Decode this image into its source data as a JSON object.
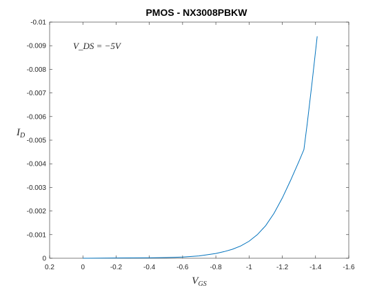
{
  "chart_data": {
    "type": "line",
    "title": "PMOS - NX3008PBKW",
    "xlabel": "V_GS",
    "ylabel": "I_D",
    "annotation": "V_DS = −5V",
    "xlim": [
      0.2,
      -1.6
    ],
    "ylim": [
      0,
      -0.01
    ],
    "x_reversed": true,
    "y_reversed": true,
    "grid": false,
    "x_ticks": [
      0.2,
      0,
      -0.2,
      -0.4,
      -0.6,
      -0.8,
      -1,
      -1.2,
      -1.4,
      -1.6
    ],
    "x_tick_labels": [
      "0.2",
      "0",
      "-0.2",
      "-0.4",
      "-0.6",
      "-0.8",
      "-1",
      "-1.2",
      "-1.4",
      "-1.6"
    ],
    "y_ticks": [
      0,
      -0.001,
      -0.002,
      -0.003,
      -0.004,
      -0.005,
      -0.006,
      -0.007,
      -0.008,
      -0.009,
      -0.01
    ],
    "y_tick_labels": [
      "0",
      "-0.001",
      "-0.002",
      "-0.003",
      "-0.004",
      "-0.005",
      "-0.006",
      "-0.007",
      "-0.008",
      "-0.009",
      "-0.01"
    ],
    "series": [
      {
        "color": "#0072bd",
        "x": [
          0,
          -0.2,
          -0.4,
          -0.5,
          -0.6,
          -0.7,
          -0.8,
          -0.85,
          -0.9,
          -0.95,
          -1.0,
          -1.05,
          -1.1,
          -1.15,
          -1.2,
          -1.25,
          -1.3,
          -1.33,
          -1.35,
          -1.38,
          -1.41
        ],
        "y": [
          0,
          -1e-05,
          -2e-05,
          -3e-05,
          -5e-05,
          -0.0001,
          -0.0002,
          -0.00028,
          -0.00038,
          -0.00052,
          -0.00072,
          -0.001,
          -0.00138,
          -0.0019,
          -0.00255,
          -0.0033,
          -0.0041,
          -0.0046,
          -0.0057,
          -0.0075,
          -0.0094
        ]
      }
    ]
  }
}
